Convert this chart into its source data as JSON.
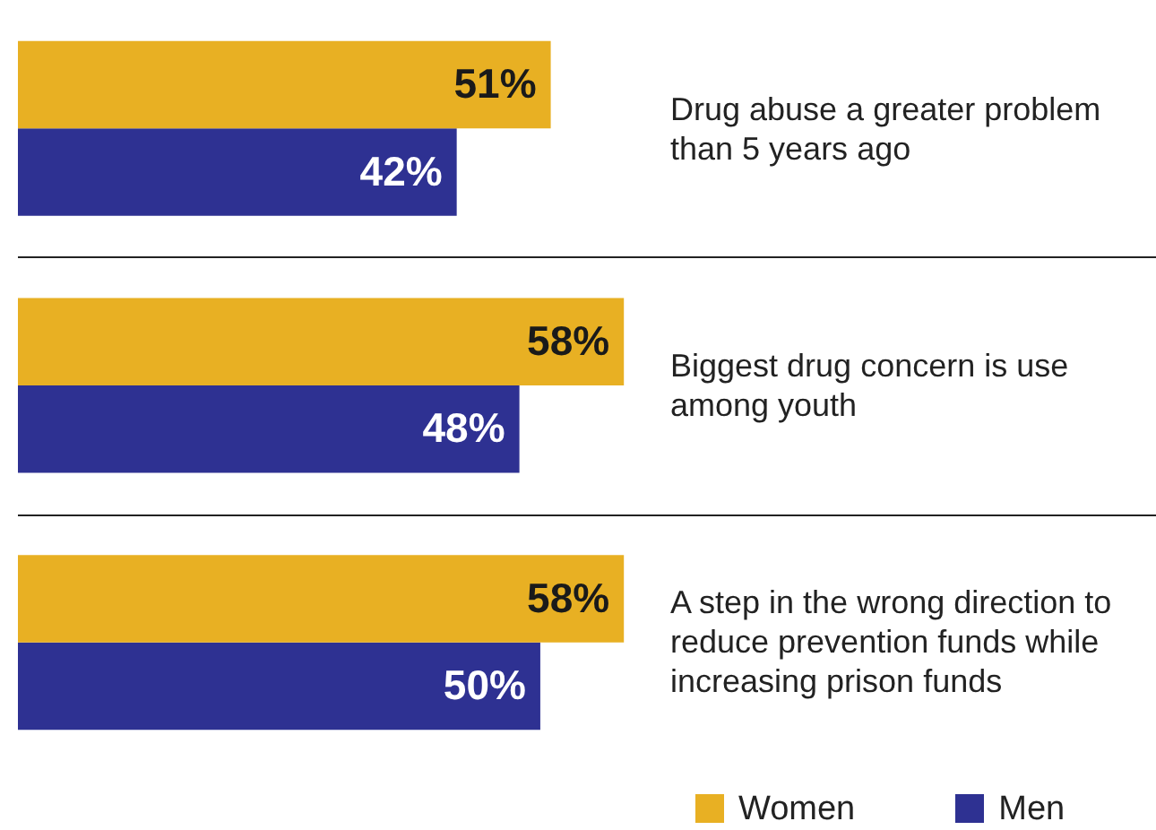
{
  "chart_data": {
    "type": "bar",
    "orientation": "horizontal",
    "categories": [
      "Drug abuse a greater problem than 5 years ago",
      "Biggest drug concern is use among youth",
      "A step in the wrong direction to reduce prevention funds while increasing prison funds"
    ],
    "series": [
      {
        "name": "Women",
        "color": "#e8b023",
        "values": [
          51,
          58,
          58
        ],
        "value_labels": [
          "51%",
          "58%",
          "58%"
        ]
      },
      {
        "name": "Men",
        "color": "#2e3192",
        "values": [
          42,
          48,
          50
        ],
        "value_labels": [
          "42%",
          "48%",
          "50%"
        ]
      }
    ],
    "legend": "bottom right"
  }
}
